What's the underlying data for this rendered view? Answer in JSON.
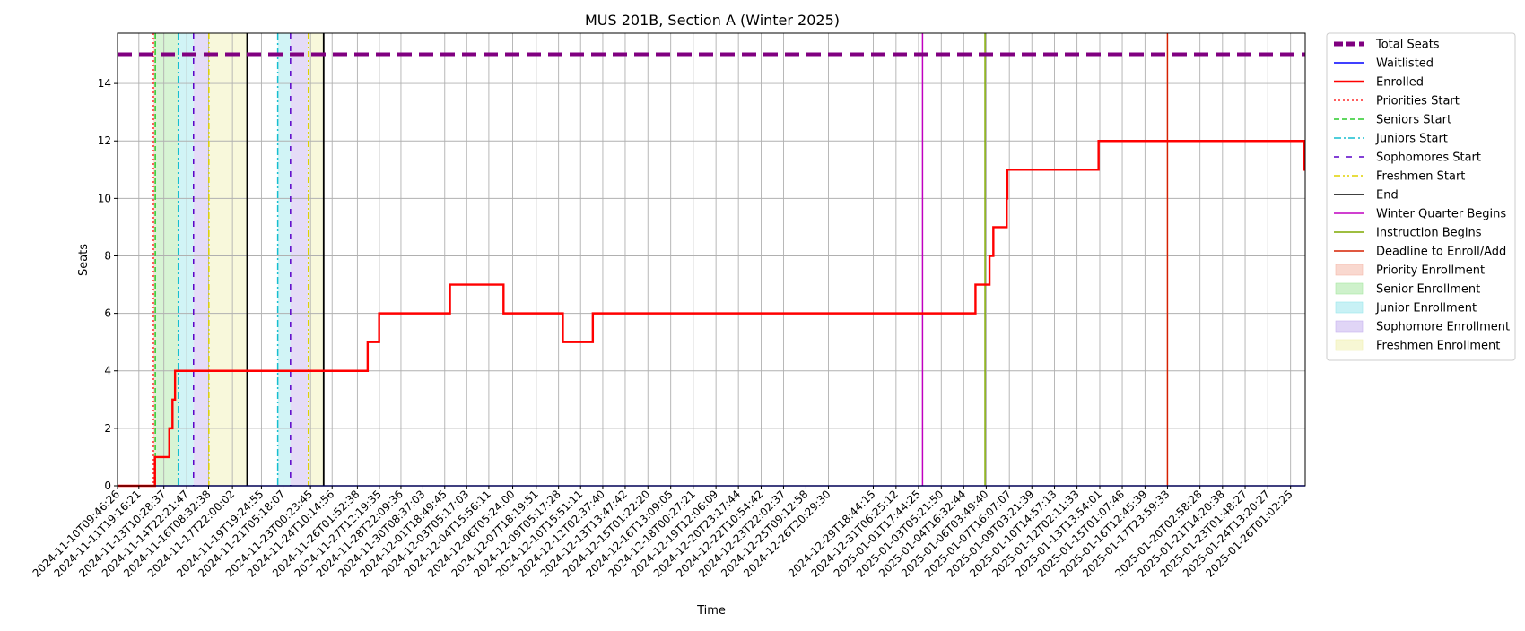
{
  "chart_data": {
    "type": "line",
    "title": "MUS 201B, Section A (Winter 2025)",
    "xlabel": "Time",
    "ylabel": "Seats",
    "x_range": [
      "2024-11-10T09:46:26",
      "2025-01-27T00:00:00"
    ],
    "ylim": [
      0,
      15.75
    ],
    "y_ticks": [
      0,
      2,
      4,
      6,
      8,
      10,
      12,
      14
    ],
    "grid": true,
    "legend_position": "outside right, top",
    "x_ticks": [
      "2024-11-10T09:46:26",
      "2024-11-11T19:16:21",
      "2024-11-13T10:28:37",
      "2024-11-14T22:21:47",
      "2024-11-16T08:32:38",
      "2024-11-17T22:00:02",
      "2024-11-19T19:24:55",
      "2024-11-21T05:18:07",
      "2024-11-23T00:23:45",
      "2024-11-24T10:14:56",
      "2024-11-26T01:52:38",
      "2024-11-27T12:19:35",
      "2024-11-28T22:09:36",
      "2024-11-30T08:37:03",
      "2024-12-01T18:49:45",
      "2024-12-03T05:17:03",
      "2024-12-04T15:56:11",
      "2024-12-06T05:24:00",
      "2024-12-07T18:19:51",
      "2024-12-09T05:17:28",
      "2024-12-10T15:51:11",
      "2024-12-12T02:37:40",
      "2024-12-13T13:47:42",
      "2024-12-15T01:22:20",
      "2024-12-16T13:09:05",
      "2024-12-18T00:27:21",
      "2024-12-19T12:06:09",
      "2024-12-20T23:17:44",
      "2024-12-22T10:54:42",
      "2024-12-23T22:02:37",
      "2024-12-25T09:12:58",
      "2024-12-26T20:29:30",
      "2024-12-29T18:44:15",
      "2024-12-31T06:25:12",
      "2025-01-01T17:44:25",
      "2025-01-03T05:21:50",
      "2025-01-04T16:32:44",
      "2025-01-06T03:49:40",
      "2025-01-07T16:07:07",
      "2025-01-09T03:21:39",
      "2025-01-10T14:57:13",
      "2025-01-12T02:11:33",
      "2025-01-13T13:54:01",
      "2025-01-15T01:07:48",
      "2025-01-16T12:45:39",
      "2025-01-17T23:59:33",
      "2025-01-20T02:58:28",
      "2025-01-21T14:20:38",
      "2025-01-23T01:48:27",
      "2025-01-24T13:20:27",
      "2025-01-26T01:02:25"
    ],
    "series": [
      {
        "name": "Total Seats",
        "color": "#800080",
        "style": "dashed-thick",
        "points": [
          [
            "2024-11-10T09:46:26",
            15
          ],
          [
            "2025-01-27T00:00:00",
            15
          ]
        ]
      },
      {
        "name": "Waitlisted",
        "color": "#0000ff",
        "style": "solid",
        "points": [
          [
            "2024-11-10T09:46:26",
            0
          ],
          [
            "2025-01-27T00:00:00",
            0
          ]
        ]
      },
      {
        "name": "Enrolled",
        "color": "#ff0000",
        "style": "step",
        "points": [
          [
            "2024-11-10T09:46:26",
            0
          ],
          [
            "2024-11-12T20:30:00",
            0
          ],
          [
            "2024-11-12T20:30:00",
            1
          ],
          [
            "2024-11-13T19:00:00",
            1
          ],
          [
            "2024-11-13T19:00:00",
            2
          ],
          [
            "2024-11-14T00:00:00",
            2
          ],
          [
            "2024-11-14T00:00:00",
            3
          ],
          [
            "2024-11-14T04:00:00",
            3
          ],
          [
            "2024-11-14T04:00:00",
            4
          ],
          [
            "2024-11-26T18:00:00",
            4
          ],
          [
            "2024-11-26T18:00:00",
            5
          ],
          [
            "2024-11-27T12:00:00",
            5
          ],
          [
            "2024-11-27T12:00:00",
            6
          ],
          [
            "2024-12-02T03:00:00",
            6
          ],
          [
            "2024-12-02T03:00:00",
            7
          ],
          [
            "2024-12-05T15:00:00",
            7
          ],
          [
            "2024-12-05T15:00:00",
            6
          ],
          [
            "2024-12-09T12:00:00",
            6
          ],
          [
            "2024-12-09T12:00:00",
            5
          ],
          [
            "2024-12-11T11:00:00",
            5
          ],
          [
            "2024-12-11T11:00:00",
            6
          ],
          [
            "2025-01-05T11:00:00",
            6
          ],
          [
            "2025-01-05T11:00:00",
            7
          ],
          [
            "2025-01-06T09:00:00",
            7
          ],
          [
            "2025-01-06T09:00:00",
            8
          ],
          [
            "2025-01-06T15:00:00",
            8
          ],
          [
            "2025-01-06T15:00:00",
            9
          ],
          [
            "2025-01-07T12:00:00",
            9
          ],
          [
            "2025-01-07T12:00:00",
            10
          ],
          [
            "2025-01-07T13:00:00",
            10
          ],
          [
            "2025-01-07T13:00:00",
            11
          ],
          [
            "2025-01-13T12:00:00",
            11
          ],
          [
            "2025-01-13T12:00:00",
            12
          ],
          [
            "2025-01-26T22:00:00",
            12
          ],
          [
            "2025-01-26T22:00:00",
            11
          ],
          [
            "2025-01-27T00:00:00",
            11
          ]
        ]
      }
    ],
    "vertical_lines": [
      {
        "name": "Priorities Start",
        "color": "#ff2a2a",
        "style": "dotted",
        "x": "2024-11-12T18:00:00"
      },
      {
        "name": "Seniors Start",
        "color": "#2ccb2c",
        "style": "dashed",
        "x": "2024-11-12T21:00:00"
      },
      {
        "name": "Juniors Start",
        "color": "#17becf",
        "style": "dashdot",
        "x": "2024-11-14T09:00:00"
      },
      {
        "name": "Sophomores Start",
        "color": "#5a00c8",
        "style": "loosedash",
        "x": "2024-11-15T09:00:00"
      },
      {
        "name": "Freshmen Start",
        "color": "#e0d200",
        "style": "dashdotdot",
        "x": "2024-11-16T09:00:00"
      },
      {
        "name": "End",
        "color": "#000000",
        "style": "solid",
        "x": "2024-11-18T21:00:00"
      },
      {
        "name": "Juniors Start",
        "color": "#17becf",
        "style": "dashdot",
        "x": "2024-11-20T21:00:00"
      },
      {
        "name": "Sophomores Start",
        "color": "#5a00c8",
        "style": "loosedash",
        "x": "2024-11-21T17:00:00"
      },
      {
        "name": "Freshmen Start",
        "color": "#e0d200",
        "style": "dashdotdot",
        "x": "2024-11-22T21:00:00"
      },
      {
        "name": "End",
        "color": "#000000",
        "style": "solid",
        "x": "2024-11-23T21:00:00"
      },
      {
        "name": "Winter Quarter Begins",
        "color": "#c000c0",
        "style": "solid",
        "x": "2025-01-02T00:00:00"
      },
      {
        "name": "Instruction Begins",
        "color": "#7fa800",
        "style": "solid",
        "x": "2025-01-06T02:00:00"
      },
      {
        "name": "Deadline to Enroll/Add",
        "color": "#d62000",
        "style": "solid",
        "x": "2025-01-17T23:59:33"
      }
    ],
    "shaded_regions": [
      {
        "name": "Priority Enrollment",
        "color": "#f4b8a8",
        "from": "2024-11-12T18:00:00",
        "to": "2024-11-12T21:00:00"
      },
      {
        "name": "Senior Enrollment",
        "color": "#a6e6a0",
        "from": "2024-11-12T21:00:00",
        "to": "2024-11-14T09:00:00"
      },
      {
        "name": "Junior Enrollment",
        "color": "#9ae6ec",
        "from": "2024-11-14T09:00:00",
        "to": "2024-11-15T09:00:00"
      },
      {
        "name": "Sophomore Enrollment",
        "color": "#c6b2ee",
        "from": "2024-11-15T09:00:00",
        "to": "2024-11-16T09:00:00"
      },
      {
        "name": "Freshmen Enrollment",
        "color": "#f0f0b0",
        "from": "2024-11-16T09:00:00",
        "to": "2024-11-18T21:00:00"
      },
      {
        "name": "Junior Enrollment",
        "color": "#9ae6ec",
        "from": "2024-11-20T21:00:00",
        "to": "2024-11-21T17:00:00"
      },
      {
        "name": "Sophomore Enrollment",
        "color": "#c6b2ee",
        "from": "2024-11-21T17:00:00",
        "to": "2024-11-22T21:00:00"
      },
      {
        "name": "Freshmen Enrollment",
        "color": "#f0f0b0",
        "from": "2024-11-22T21:00:00",
        "to": "2024-11-23T21:00:00"
      }
    ],
    "legend": [
      {
        "label": "Total Seats",
        "color": "#800080",
        "kind": "thickdash"
      },
      {
        "label": "Waitlisted",
        "color": "#0000ff",
        "kind": "line"
      },
      {
        "label": "Enrolled",
        "color": "#ff0000",
        "kind": "thickline"
      },
      {
        "label": "Priorities Start",
        "color": "#ff2a2a",
        "kind": "dotted"
      },
      {
        "label": "Seniors Start",
        "color": "#2ccb2c",
        "kind": "dashed"
      },
      {
        "label": "Juniors Start",
        "color": "#17becf",
        "kind": "dashdot"
      },
      {
        "label": "Sophomores Start",
        "color": "#5a00c8",
        "kind": "loosedash"
      },
      {
        "label": "Freshmen Start",
        "color": "#e0d200",
        "kind": "dashdotdot"
      },
      {
        "label": "End",
        "color": "#000000",
        "kind": "line"
      },
      {
        "label": "Winter Quarter Begins",
        "color": "#c000c0",
        "kind": "line"
      },
      {
        "label": "Instruction Begins",
        "color": "#7fa800",
        "kind": "line"
      },
      {
        "label": "Deadline to Enroll/Add",
        "color": "#d62000",
        "kind": "line"
      },
      {
        "label": "Priority Enrollment",
        "color": "#f4b8a8",
        "kind": "patch"
      },
      {
        "label": "Senior Enrollment",
        "color": "#a6e6a0",
        "kind": "patch"
      },
      {
        "label": "Junior Enrollment",
        "color": "#9ae6ec",
        "kind": "patch"
      },
      {
        "label": "Sophomore Enrollment",
        "color": "#c6b2ee",
        "kind": "patch"
      },
      {
        "label": "Freshmen Enrollment",
        "color": "#f0f0b0",
        "kind": "patch"
      }
    ]
  }
}
